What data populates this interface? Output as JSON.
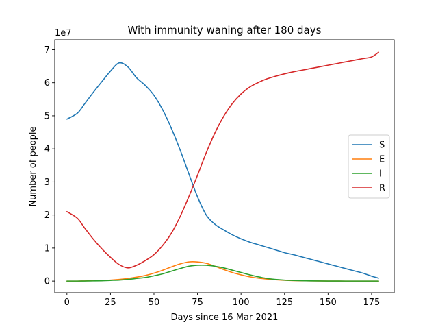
{
  "chart_data": {
    "type": "line",
    "title": "With immunity waning after 180 days",
    "xlabel": "Days since 16 Mar 2021",
    "ylabel": "Number of people",
    "y_multiplier_label": "1e7",
    "xlim": [
      -7,
      188
    ],
    "ylim": [
      -0.35,
      7.3
    ],
    "xticks": [
      0,
      25,
      50,
      75,
      100,
      125,
      150,
      175
    ],
    "yticks": [
      0,
      1,
      2,
      3,
      4,
      5,
      6,
      7
    ],
    "grid": false,
    "legend_position": "center-right",
    "x": [
      0,
      6,
      10,
      15,
      20,
      25,
      30,
      35,
      40,
      45,
      50,
      55,
      60,
      65,
      70,
      75,
      80,
      85,
      90,
      95,
      100,
      105,
      110,
      115,
      120,
      125,
      130,
      135,
      140,
      145,
      150,
      155,
      160,
      165,
      170,
      175,
      179
    ],
    "series": [
      {
        "name": "S",
        "color": "#1f77b4",
        "values": [
          4.9,
          5.08,
          5.35,
          5.7,
          6.03,
          6.35,
          6.6,
          6.48,
          6.15,
          5.92,
          5.62,
          5.18,
          4.62,
          3.97,
          3.25,
          2.55,
          2.0,
          1.72,
          1.55,
          1.4,
          1.28,
          1.18,
          1.1,
          1.02,
          0.94,
          0.86,
          0.8,
          0.73,
          0.66,
          0.59,
          0.52,
          0.45,
          0.38,
          0.31,
          0.24,
          0.15,
          0.09
        ]
      },
      {
        "name": "E",
        "color": "#ff7f0e",
        "values": [
          0.0,
          0.0,
          0.005,
          0.01,
          0.02,
          0.03,
          0.05,
          0.08,
          0.12,
          0.17,
          0.24,
          0.33,
          0.43,
          0.52,
          0.58,
          0.58,
          0.54,
          0.45,
          0.35,
          0.26,
          0.19,
          0.13,
          0.09,
          0.06,
          0.04,
          0.025,
          0.015,
          0.01,
          0.005,
          0.003,
          0.002,
          0.001,
          0.0,
          0.0,
          0.0,
          0.0,
          0.0
        ]
      },
      {
        "name": "I",
        "color": "#2ca02c",
        "values": [
          0.0,
          0.0,
          0.002,
          0.005,
          0.01,
          0.02,
          0.03,
          0.05,
          0.08,
          0.11,
          0.16,
          0.22,
          0.3,
          0.38,
          0.45,
          0.48,
          0.48,
          0.45,
          0.4,
          0.33,
          0.26,
          0.19,
          0.13,
          0.08,
          0.05,
          0.03,
          0.02,
          0.012,
          0.007,
          0.004,
          0.002,
          0.001,
          0.0,
          0.0,
          0.0,
          0.0,
          0.0
        ]
      },
      {
        "name": "R",
        "color": "#d62728",
        "values": [
          2.1,
          1.9,
          1.62,
          1.28,
          0.98,
          0.72,
          0.5,
          0.4,
          0.48,
          0.62,
          0.8,
          1.08,
          1.45,
          1.95,
          2.55,
          3.2,
          3.88,
          4.48,
          4.98,
          5.37,
          5.66,
          5.87,
          6.01,
          6.12,
          6.2,
          6.27,
          6.33,
          6.38,
          6.43,
          6.48,
          6.53,
          6.58,
          6.63,
          6.68,
          6.73,
          6.78,
          6.92
        ]
      }
    ]
  }
}
